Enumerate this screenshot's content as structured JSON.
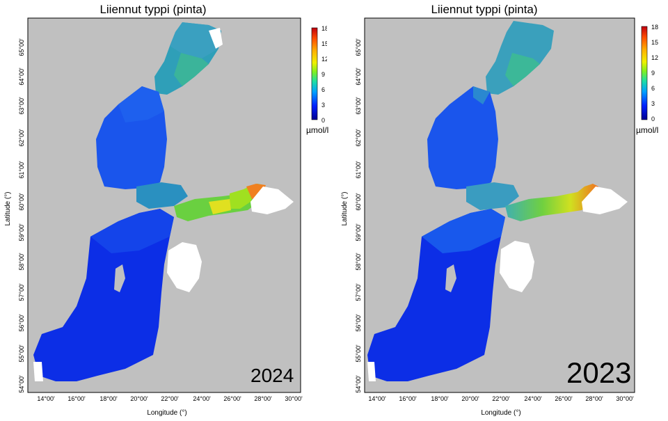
{
  "maps": [
    {
      "title": "Liiennut typpi (pinta)",
      "year": "2024",
      "ylabel": "Latitude (°)",
      "xlabel": "Longitude (°)",
      "lat_ticks": [
        "65°00'",
        "64°00'",
        "63°00'",
        "62°00'",
        "61°00'",
        "60°00'",
        "59°00'",
        "58°00'",
        "57°00'",
        "56°00'",
        "55°00'",
        "54°00'"
      ],
      "lon_ticks": [
        "14°00'",
        "16°00'",
        "18°00'",
        "20°00'",
        "22°00'",
        "24°00'",
        "26°00'",
        "28°00'",
        "30°00'"
      ],
      "colorbar": {
        "unit": "µmol/l",
        "ticks": [
          "18",
          "15",
          "12",
          "9",
          "6",
          "3",
          "0"
        ]
      }
    },
    {
      "title": "Liiennut typpi (pinta)",
      "year": "2023",
      "ylabel": "Latitude (°)",
      "xlabel": "Longitude (°)",
      "lat_ticks": [
        "65°00'",
        "64°00'",
        "63°00'",
        "62°00'",
        "61°00'",
        "60°00'",
        "59°00'",
        "58°00'",
        "57°00'",
        "56°00'",
        "55°00'",
        "54°00'"
      ],
      "lon_ticks": [
        "14°00'",
        "16°00'",
        "18°00'",
        "20°00'",
        "22°00'",
        "24°00'",
        "26°00'",
        "28°00'",
        "30°00'"
      ],
      "colorbar": {
        "unit": "µmol/l",
        "ticks": [
          "18",
          "15",
          "12",
          "9",
          "6",
          "3",
          "0"
        ]
      }
    }
  ],
  "colors": {
    "land": "#c0c0c0",
    "no_data": "#ffffff",
    "low": "#0a20e0",
    "mid_low": "#1e6af0",
    "mid": "#36b4a0",
    "high": "#e8e020",
    "max": "#ee6e2a"
  }
}
